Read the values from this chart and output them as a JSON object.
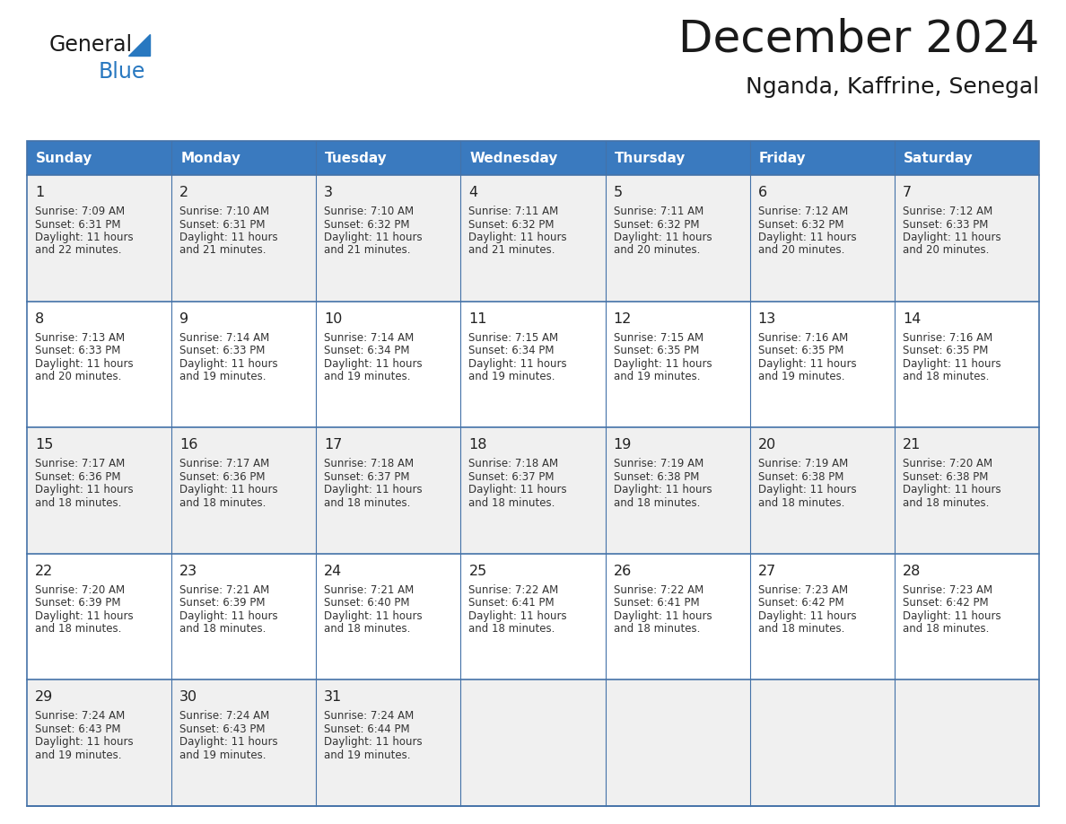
{
  "title": "December 2024",
  "subtitle": "Nganda, Kaffrine, Senegal",
  "header_color": "#3a7abf",
  "header_text_color": "#ffffff",
  "cell_bg_odd": "#f0f0f0",
  "cell_bg_even": "#ffffff",
  "border_color": "#4472a8",
  "day_names": [
    "Sunday",
    "Monday",
    "Tuesday",
    "Wednesday",
    "Thursday",
    "Friday",
    "Saturday"
  ],
  "days": [
    {
      "date": 1,
      "row": 0,
      "col": 0,
      "sunrise": "7:09 AM",
      "sunset": "6:31 PM",
      "daylight": "11 hours and 22 minutes."
    },
    {
      "date": 2,
      "row": 0,
      "col": 1,
      "sunrise": "7:10 AM",
      "sunset": "6:31 PM",
      "daylight": "11 hours and 21 minutes."
    },
    {
      "date": 3,
      "row": 0,
      "col": 2,
      "sunrise": "7:10 AM",
      "sunset": "6:32 PM",
      "daylight": "11 hours and 21 minutes."
    },
    {
      "date": 4,
      "row": 0,
      "col": 3,
      "sunrise": "7:11 AM",
      "sunset": "6:32 PM",
      "daylight": "11 hours and 21 minutes."
    },
    {
      "date": 5,
      "row": 0,
      "col": 4,
      "sunrise": "7:11 AM",
      "sunset": "6:32 PM",
      "daylight": "11 hours and 20 minutes."
    },
    {
      "date": 6,
      "row": 0,
      "col": 5,
      "sunrise": "7:12 AM",
      "sunset": "6:32 PM",
      "daylight": "11 hours and 20 minutes."
    },
    {
      "date": 7,
      "row": 0,
      "col": 6,
      "sunrise": "7:12 AM",
      "sunset": "6:33 PM",
      "daylight": "11 hours and 20 minutes."
    },
    {
      "date": 8,
      "row": 1,
      "col": 0,
      "sunrise": "7:13 AM",
      "sunset": "6:33 PM",
      "daylight": "11 hours and 20 minutes."
    },
    {
      "date": 9,
      "row": 1,
      "col": 1,
      "sunrise": "7:14 AM",
      "sunset": "6:33 PM",
      "daylight": "11 hours and 19 minutes."
    },
    {
      "date": 10,
      "row": 1,
      "col": 2,
      "sunrise": "7:14 AM",
      "sunset": "6:34 PM",
      "daylight": "11 hours and 19 minutes."
    },
    {
      "date": 11,
      "row": 1,
      "col": 3,
      "sunrise": "7:15 AM",
      "sunset": "6:34 PM",
      "daylight": "11 hours and 19 minutes."
    },
    {
      "date": 12,
      "row": 1,
      "col": 4,
      "sunrise": "7:15 AM",
      "sunset": "6:35 PM",
      "daylight": "11 hours and 19 minutes."
    },
    {
      "date": 13,
      "row": 1,
      "col": 5,
      "sunrise": "7:16 AM",
      "sunset": "6:35 PM",
      "daylight": "11 hours and 19 minutes."
    },
    {
      "date": 14,
      "row": 1,
      "col": 6,
      "sunrise": "7:16 AM",
      "sunset": "6:35 PM",
      "daylight": "11 hours and 18 minutes."
    },
    {
      "date": 15,
      "row": 2,
      "col": 0,
      "sunrise": "7:17 AM",
      "sunset": "6:36 PM",
      "daylight": "11 hours and 18 minutes."
    },
    {
      "date": 16,
      "row": 2,
      "col": 1,
      "sunrise": "7:17 AM",
      "sunset": "6:36 PM",
      "daylight": "11 hours and 18 minutes."
    },
    {
      "date": 17,
      "row": 2,
      "col": 2,
      "sunrise": "7:18 AM",
      "sunset": "6:37 PM",
      "daylight": "11 hours and 18 minutes."
    },
    {
      "date": 18,
      "row": 2,
      "col": 3,
      "sunrise": "7:18 AM",
      "sunset": "6:37 PM",
      "daylight": "11 hours and 18 minutes."
    },
    {
      "date": 19,
      "row": 2,
      "col": 4,
      "sunrise": "7:19 AM",
      "sunset": "6:38 PM",
      "daylight": "11 hours and 18 minutes."
    },
    {
      "date": 20,
      "row": 2,
      "col": 5,
      "sunrise": "7:19 AM",
      "sunset": "6:38 PM",
      "daylight": "11 hours and 18 minutes."
    },
    {
      "date": 21,
      "row": 2,
      "col": 6,
      "sunrise": "7:20 AM",
      "sunset": "6:38 PM",
      "daylight": "11 hours and 18 minutes."
    },
    {
      "date": 22,
      "row": 3,
      "col": 0,
      "sunrise": "7:20 AM",
      "sunset": "6:39 PM",
      "daylight": "11 hours and 18 minutes."
    },
    {
      "date": 23,
      "row": 3,
      "col": 1,
      "sunrise": "7:21 AM",
      "sunset": "6:39 PM",
      "daylight": "11 hours and 18 minutes."
    },
    {
      "date": 24,
      "row": 3,
      "col": 2,
      "sunrise": "7:21 AM",
      "sunset": "6:40 PM",
      "daylight": "11 hours and 18 minutes."
    },
    {
      "date": 25,
      "row": 3,
      "col": 3,
      "sunrise": "7:22 AM",
      "sunset": "6:41 PM",
      "daylight": "11 hours and 18 minutes."
    },
    {
      "date": 26,
      "row": 3,
      "col": 4,
      "sunrise": "7:22 AM",
      "sunset": "6:41 PM",
      "daylight": "11 hours and 18 minutes."
    },
    {
      "date": 27,
      "row": 3,
      "col": 5,
      "sunrise": "7:23 AM",
      "sunset": "6:42 PM",
      "daylight": "11 hours and 18 minutes."
    },
    {
      "date": 28,
      "row": 3,
      "col": 6,
      "sunrise": "7:23 AM",
      "sunset": "6:42 PM",
      "daylight": "11 hours and 18 minutes."
    },
    {
      "date": 29,
      "row": 4,
      "col": 0,
      "sunrise": "7:24 AM",
      "sunset": "6:43 PM",
      "daylight": "11 hours and 19 minutes."
    },
    {
      "date": 30,
      "row": 4,
      "col": 1,
      "sunrise": "7:24 AM",
      "sunset": "6:43 PM",
      "daylight": "11 hours and 19 minutes."
    },
    {
      "date": 31,
      "row": 4,
      "col": 2,
      "sunrise": "7:24 AM",
      "sunset": "6:44 PM",
      "daylight": "11 hours and 19 minutes."
    }
  ],
  "logo_general_color": "#1a1a1a",
  "logo_blue_color": "#2878c0",
  "logo_triangle_color": "#2878c0",
  "fig_width": 11.88,
  "fig_height": 9.18,
  "dpi": 100
}
